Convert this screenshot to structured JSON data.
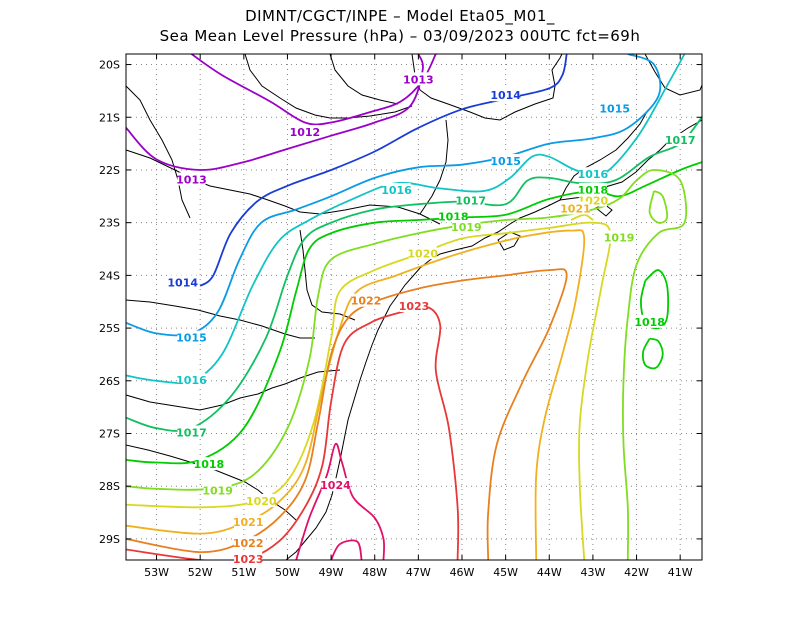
{
  "title_line1": "DIMNT/CGCT/INPE –  Model Eta05_M01_",
  "title_line2": "Sea Mean Level Pressure (hPa) – 03/09/2023 00UTC fct=69h",
  "lon_ticks": [
    "53W",
    "52W",
    "51W",
    "50W",
    "49W",
    "48W",
    "47W",
    "46W",
    "45W",
    "44W",
    "43W",
    "42W",
    "41W"
  ],
  "lat_ticks": [
    "20S",
    "21S",
    "22S",
    "23S",
    "24S",
    "25S",
    "26S",
    "27S",
    "28S",
    "29S"
  ],
  "lon_range": [
    -53.7,
    -40.5
  ],
  "lat_range": [
    -29.4,
    -19.8
  ],
  "contour_interval_hPa": 1,
  "isobars": [
    {
      "label": "1012",
      "color": "#9b00c8",
      "points": [
        [
          -52.2,
          -19.8
        ],
        [
          -51.5,
          -20.2
        ],
        [
          -50.4,
          -20.7
        ],
        [
          -49.6,
          -21.1
        ],
        [
          -49.0,
          -21.1
        ],
        [
          -48.1,
          -20.9
        ],
        [
          -47.4,
          -20.7
        ],
        [
          -46.9,
          -20.3
        ],
        [
          -46.6,
          -19.8
        ]
      ],
      "labels": [
        [
          -49.6,
          -21.3
        ]
      ]
    },
    {
      "label": "1013",
      "color": "#9b00c8",
      "points": [
        [
          -53.7,
          -21.2
        ],
        [
          -53.0,
          -21.8
        ],
        [
          -52.0,
          -22.0
        ],
        [
          -51.0,
          -21.85
        ],
        [
          -50.0,
          -21.6
        ],
        [
          -49.0,
          -21.35
        ],
        [
          -48.0,
          -21.1
        ],
        [
          -47.2,
          -20.8
        ],
        [
          -46.9,
          -20.1
        ],
        [
          -47.0,
          -19.8
        ]
      ],
      "labels": [
        [
          -52.2,
          -22.2
        ],
        [
          -47.0,
          -20.3
        ]
      ]
    },
    {
      "label": "1014",
      "color": "#1a3cd6",
      "points": [
        [
          -52.0,
          -24.2
        ],
        [
          -51.7,
          -24.0
        ],
        [
          -51.3,
          -23.2
        ],
        [
          -50.7,
          -22.6
        ],
        [
          -50.0,
          -22.3
        ],
        [
          -49.0,
          -22.0
        ],
        [
          -48.0,
          -21.65
        ],
        [
          -47.0,
          -21.2
        ],
        [
          -46.0,
          -20.85
        ],
        [
          -45.0,
          -20.65
        ],
        [
          -44.0,
          -20.45
        ],
        [
          -43.7,
          -20.2
        ],
        [
          -43.6,
          -19.8
        ]
      ],
      "labels": [
        [
          -52.4,
          -24.15
        ],
        [
          -45.0,
          -20.6
        ]
      ]
    },
    {
      "label": "1015",
      "color": "#0a9be6",
      "points": [
        [
          -53.7,
          -24.9
        ],
        [
          -53.0,
          -25.1
        ],
        [
          -52.2,
          -25.1
        ],
        [
          -51.6,
          -24.7
        ],
        [
          -51.1,
          -23.7
        ],
        [
          -50.6,
          -23.0
        ],
        [
          -49.8,
          -22.75
        ],
        [
          -49.0,
          -22.5
        ],
        [
          -48.0,
          -22.15
        ],
        [
          -47.0,
          -21.95
        ],
        [
          -46.0,
          -21.9
        ],
        [
          -45.0,
          -21.75
        ],
        [
          -44.0,
          -21.5
        ],
        [
          -43.0,
          -21.4
        ],
        [
          -42.2,
          -21.2
        ],
        [
          -41.5,
          -20.6
        ],
        [
          -41.6,
          -20.0
        ],
        [
          -42.2,
          -19.8
        ]
      ],
      "labels": [
        [
          -52.2,
          -25.2
        ],
        [
          -45.0,
          -21.85
        ],
        [
          -42.5,
          -20.85
        ]
      ]
    },
    {
      "label": "1016",
      "color": "#12c4c4",
      "points": [
        [
          -53.7,
          -25.9
        ],
        [
          -53.0,
          -26.0
        ],
        [
          -52.2,
          -26.0
        ],
        [
          -51.5,
          -25.5
        ],
        [
          -50.8,
          -24.2
        ],
        [
          -50.2,
          -23.35
        ],
        [
          -49.5,
          -22.95
        ],
        [
          -48.5,
          -22.55
        ],
        [
          -47.5,
          -22.25
        ],
        [
          -46.5,
          -22.35
        ],
        [
          -45.5,
          -22.4
        ],
        [
          -44.9,
          -22.15
        ],
        [
          -44.4,
          -21.75
        ],
        [
          -44.0,
          -21.75
        ],
        [
          -43.4,
          -22.0
        ],
        [
          -42.8,
          -22.1
        ],
        [
          -42.0,
          -21.4
        ],
        [
          -41.3,
          -20.4
        ],
        [
          -40.9,
          -19.8
        ]
      ],
      "labels": [
        [
          -52.2,
          -26.0
        ],
        [
          -47.5,
          -22.4
        ],
        [
          -43.0,
          -22.1
        ]
      ]
    },
    {
      "label": "1017",
      "color": "#10c060",
      "points": [
        [
          -53.7,
          -26.7
        ],
        [
          -53.0,
          -26.9
        ],
        [
          -52.2,
          -26.9
        ],
        [
          -51.3,
          -26.3
        ],
        [
          -50.5,
          -25.2
        ],
        [
          -50.0,
          -24.0
        ],
        [
          -49.6,
          -23.3
        ],
        [
          -49.0,
          -23.0
        ],
        [
          -48.0,
          -22.75
        ],
        [
          -47.0,
          -22.65
        ],
        [
          -46.0,
          -22.6
        ],
        [
          -45.0,
          -22.65
        ],
        [
          -44.5,
          -22.2
        ],
        [
          -44.0,
          -22.15
        ],
        [
          -43.3,
          -22.25
        ],
        [
          -42.5,
          -22.2
        ],
        [
          -41.7,
          -21.75
        ],
        [
          -41.0,
          -21.5
        ],
        [
          -40.5,
          -21.0
        ]
      ],
      "labels": [
        [
          -52.2,
          -27.0
        ],
        [
          -45.8,
          -22.6
        ],
        [
          -41.0,
          -21.45
        ]
      ]
    },
    {
      "label": "1018",
      "color": "#00cc00",
      "points": [
        [
          -53.7,
          -27.5
        ],
        [
          -53.0,
          -27.55
        ],
        [
          -52.0,
          -27.5
        ],
        [
          -51.0,
          -26.9
        ],
        [
          -50.2,
          -25.5
        ],
        [
          -49.8,
          -24.3
        ],
        [
          -49.5,
          -23.5
        ],
        [
          -49.0,
          -23.2
        ],
        [
          -48.0,
          -23.0
        ],
        [
          -47.0,
          -22.95
        ],
        [
          -46.0,
          -22.9
        ],
        [
          -45.0,
          -22.85
        ],
        [
          -44.0,
          -22.55
        ],
        [
          -43.0,
          -22.4
        ],
        [
          -42.4,
          -22.5
        ],
        [
          -41.8,
          -22.3
        ],
        [
          -41.0,
          -22.0
        ],
        [
          -40.5,
          -21.85
        ]
      ],
      "labels": [
        [
          -51.8,
          -27.6
        ],
        [
          -46.2,
          -22.9
        ],
        [
          -43.0,
          -22.4
        ]
      ]
    },
    {
      "label": "1018",
      "color": "#00cc00",
      "points": [
        [
          -41.8,
          -24.1
        ],
        [
          -41.5,
          -23.9
        ],
        [
          -41.3,
          -24.2
        ],
        [
          -41.3,
          -24.8
        ],
        [
          -41.5,
          -25.0
        ],
        [
          -41.8,
          -24.9
        ],
        [
          -41.9,
          -24.5
        ],
        [
          -41.8,
          -24.1
        ]
      ],
      "labels": [
        [
          -41.7,
          -24.9
        ]
      ]
    },
    {
      "label": "1018",
      "color": "#00cc00",
      "points": [
        [
          -41.7,
          -25.2
        ],
        [
          -41.5,
          -25.25
        ],
        [
          -41.4,
          -25.5
        ],
        [
          -41.55,
          -25.75
        ],
        [
          -41.8,
          -25.7
        ],
        [
          -41.85,
          -25.45
        ],
        [
          -41.7,
          -25.2
        ]
      ],
      "labels": []
    },
    {
      "label": "1019",
      "color": "#80dd20",
      "points": [
        [
          -53.7,
          -28.0
        ],
        [
          -53.0,
          -28.05
        ],
        [
          -51.8,
          -28.05
        ],
        [
          -50.8,
          -27.8
        ],
        [
          -50.0,
          -26.9
        ],
        [
          -49.5,
          -25.6
        ],
        [
          -49.3,
          -24.4
        ],
        [
          -49.0,
          -23.7
        ],
        [
          -48.0,
          -23.4
        ],
        [
          -47.0,
          -23.2
        ],
        [
          -46.0,
          -23.05
        ],
        [
          -45.0,
          -22.95
        ],
        [
          -44.0,
          -22.9
        ],
        [
          -43.0,
          -22.75
        ],
        [
          -42.4,
          -22.55
        ],
        [
          -42.0,
          -22.2
        ],
        [
          -41.6,
          -22.0
        ],
        [
          -41.0,
          -22.2
        ],
        [
          -40.9,
          -23.0
        ],
        [
          -41.5,
          -23.2
        ],
        [
          -42.0,
          -23.8
        ],
        [
          -42.2,
          -24.8
        ],
        [
          -42.3,
          -26.0
        ],
        [
          -42.3,
          -27.2
        ],
        [
          -42.2,
          -28.4
        ],
        [
          -42.2,
          -29.4
        ]
      ],
      "labels": [
        [
          -51.6,
          -28.1
        ],
        [
          -45.9,
          -23.1
        ],
        [
          -42.4,
          -23.3
        ]
      ]
    },
    {
      "label": "1019",
      "color": "#80dd20",
      "points": [
        [
          -41.6,
          -22.4
        ],
        [
          -41.4,
          -22.5
        ],
        [
          -41.3,
          -22.9
        ],
        [
          -41.5,
          -23.0
        ],
        [
          -41.7,
          -22.8
        ],
        [
          -41.6,
          -22.4
        ]
      ],
      "labels": []
    },
    {
      "label": "1020",
      "color": "#d8d820",
      "points": [
        [
          -53.7,
          -28.35
        ],
        [
          -52.0,
          -28.4
        ],
        [
          -50.8,
          -28.3
        ],
        [
          -50.0,
          -27.9
        ],
        [
          -49.4,
          -26.8
        ],
        [
          -49.0,
          -25.2
        ],
        [
          -48.8,
          -24.3
        ],
        [
          -48.0,
          -23.9
        ],
        [
          -47.0,
          -23.6
        ],
        [
          -46.0,
          -23.3
        ],
        [
          -45.0,
          -23.2
        ],
        [
          -44.0,
          -23.1
        ],
        [
          -43.0,
          -23.0
        ],
        [
          -42.6,
          -23.2
        ],
        [
          -42.8,
          -24.2
        ],
        [
          -43.1,
          -25.5
        ],
        [
          -43.3,
          -26.8
        ],
        [
          -43.3,
          -28.0
        ],
        [
          -43.2,
          -29.4
        ]
      ],
      "labels": [
        [
          -50.6,
          -28.3
        ],
        [
          -46.9,
          -23.6
        ]
      ]
    },
    {
      "label": "1020",
      "color": "#d8d820",
      "points": [
        [
          -43.5,
          -22.95
        ],
        [
          -43.2,
          -22.85
        ],
        [
          -43.0,
          -22.95
        ]
      ],
      "labels": [
        [
          -43.0,
          -22.6
        ]
      ]
    },
    {
      "label": "1021",
      "color": "#f0b020",
      "points": [
        [
          -53.7,
          -28.75
        ],
        [
          -52.0,
          -28.9
        ],
        [
          -51.0,
          -28.7
        ],
        [
          -50.2,
          -28.3
        ],
        [
          -49.6,
          -27.6
        ],
        [
          -49.2,
          -26.2
        ],
        [
          -48.8,
          -25.0
        ],
        [
          -48.4,
          -24.3
        ],
        [
          -47.5,
          -24.0
        ],
        [
          -46.5,
          -23.7
        ],
        [
          -45.5,
          -23.45
        ],
        [
          -44.5,
          -23.25
        ],
        [
          -43.5,
          -23.15
        ],
        [
          -43.2,
          -23.3
        ],
        [
          -43.4,
          -24.5
        ],
        [
          -43.7,
          -25.5
        ],
        [
          -44.1,
          -26.7
        ],
        [
          -44.3,
          -27.8
        ],
        [
          -44.3,
          -29.4
        ]
      ],
      "labels": [
        [
          -50.9,
          -28.7
        ],
        [
          -43.4,
          -22.75
        ]
      ]
    },
    {
      "label": "1022",
      "color": "#e88020",
      "points": [
        [
          -53.7,
          -29.0
        ],
        [
          -52.0,
          -29.25
        ],
        [
          -51.0,
          -29.05
        ],
        [
          -50.2,
          -28.6
        ],
        [
          -49.6,
          -27.9
        ],
        [
          -49.3,
          -26.8
        ],
        [
          -49.0,
          -25.5
        ],
        [
          -48.6,
          -24.8
        ],
        [
          -48.0,
          -24.5
        ],
        [
          -47.0,
          -24.25
        ],
        [
          -46.0,
          -24.1
        ],
        [
          -45.0,
          -24.0
        ],
        [
          -44.0,
          -23.9
        ],
        [
          -43.6,
          -24.0
        ],
        [
          -44.0,
          -25.0
        ],
        [
          -44.6,
          -26.0
        ],
        [
          -45.2,
          -27.2
        ],
        [
          -45.4,
          -28.5
        ],
        [
          -45.4,
          -29.4
        ]
      ],
      "labels": [
        [
          -50.9,
          -29.1
        ],
        [
          -48.2,
          -24.5
        ]
      ]
    },
    {
      "label": "1023",
      "color": "#e83838",
      "points": [
        [
          -53.7,
          -29.2
        ],
        [
          -52.0,
          -29.4
        ],
        [
          -51.0,
          -29.4
        ],
        [
          -50.2,
          -29.05
        ],
        [
          -49.6,
          -28.4
        ],
        [
          -49.2,
          -27.6
        ],
        [
          -49.0,
          -26.4
        ],
        [
          -48.7,
          -25.3
        ],
        [
          -48.1,
          -24.9
        ],
        [
          -47.4,
          -24.7
        ],
        [
          -46.8,
          -24.6
        ],
        [
          -46.5,
          -24.95
        ],
        [
          -46.6,
          -25.8
        ],
        [
          -46.3,
          -26.9
        ],
        [
          -46.1,
          -28.4
        ],
        [
          -46.1,
          -29.4
        ]
      ],
      "labels": [
        [
          -50.9,
          -29.4
        ],
        [
          -47.1,
          -24.6
        ]
      ]
    },
    {
      "label": "1024",
      "color": "#e0106a",
      "points": [
        [
          -49.8,
          -29.4
        ],
        [
          -49.5,
          -28.6
        ],
        [
          -49.1,
          -27.8
        ],
        [
          -48.9,
          -27.2
        ],
        [
          -48.75,
          -27.55
        ],
        [
          -48.5,
          -28.2
        ],
        [
          -48.0,
          -28.6
        ],
        [
          -47.8,
          -29.0
        ],
        [
          -47.8,
          -29.4
        ]
      ],
      "labels": [
        [
          -48.9,
          -28.0
        ]
      ]
    },
    {
      "label": "1024",
      "color": "#e0106a",
      "points": [
        [
          -49.0,
          -29.4
        ],
        [
          -48.8,
          -29.1
        ],
        [
          -48.4,
          -29.05
        ],
        [
          -48.3,
          -29.4
        ]
      ],
      "labels": []
    }
  ]
}
